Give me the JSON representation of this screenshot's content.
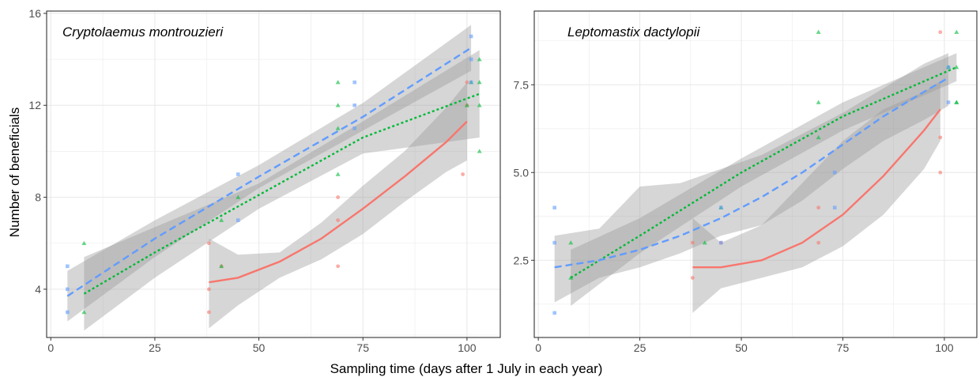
{
  "figure": {
    "xlabel": "Sampling time (days after 1 July in each year)",
    "ylabel": "Number of beneficials"
  },
  "colors": {
    "series_red": "#F8766D",
    "series_green": "#00BA38",
    "series_blue": "#619CFF",
    "ribbon": "#999999",
    "panel_border": "#333333",
    "grid": "#ebebeb"
  },
  "chart_data": [
    {
      "type": "scatter",
      "title": "Cryptolaemus montrouzieri",
      "xlim": [
        -1,
        108
      ],
      "ylim": [
        1.9,
        16.1
      ],
      "x_ticks": [
        0,
        25,
        50,
        75,
        100
      ],
      "x_tick_labels": [
        "0",
        "25",
        "50",
        "75",
        "100"
      ],
      "y_ticks": [
        4,
        8,
        12,
        16
      ],
      "y_tick_labels": [
        "4",
        "8",
        "12",
        "16"
      ],
      "grid": true,
      "series": [
        {
          "color": "#F8766D",
          "marker": "circle",
          "line": "solid",
          "points": [
            [
              38,
              6
            ],
            [
              38,
              4
            ],
            [
              38,
              3
            ],
            [
              41,
              5
            ],
            [
              69,
              8
            ],
            [
              69,
              7
            ],
            [
              69,
              5
            ],
            [
              99,
              9
            ],
            [
              100,
              13
            ],
            [
              100,
              12
            ]
          ],
          "fit": [
            [
              38,
              4.3
            ],
            [
              45,
              4.5
            ],
            [
              55,
              5.2
            ],
            [
              65,
              6.2
            ],
            [
              75,
              7.5
            ],
            [
              85,
              8.9
            ],
            [
              95,
              10.4
            ],
            [
              100,
              11.3
            ]
          ],
          "band_upper": [
            [
              38,
              6.2
            ],
            [
              45,
              5.5
            ],
            [
              55,
              5.6
            ],
            [
              65,
              6.9
            ],
            [
              75,
              8.5
            ],
            [
              85,
              10.0
            ],
            [
              95,
              11.9
            ],
            [
              100,
              13.0
            ]
          ],
          "band_lower": [
            [
              38,
              2.3
            ],
            [
              45,
              3.3
            ],
            [
              55,
              4.5
            ],
            [
              65,
              5.3
            ],
            [
              75,
              6.4
            ],
            [
              85,
              7.8
            ],
            [
              95,
              9.1
            ],
            [
              100,
              9.6
            ]
          ]
        },
        {
          "color": "#00BA38",
          "marker": "triangle",
          "line": "dotted",
          "points": [
            [
              8,
              6
            ],
            [
              8,
              3
            ],
            [
              41,
              7
            ],
            [
              41,
              5
            ],
            [
              45,
              8
            ],
            [
              69,
              13
            ],
            [
              69,
              12
            ],
            [
              69,
              11
            ],
            [
              69,
              9
            ],
            [
              100,
              12
            ],
            [
              101,
              13
            ],
            [
              103,
              14
            ],
            [
              103,
              13
            ],
            [
              103,
              12
            ],
            [
              103,
              10
            ]
          ],
          "fit": [
            [
              8,
              3.8
            ],
            [
              25,
              5.6
            ],
            [
              50,
              8.1
            ],
            [
              75,
              10.6
            ],
            [
              103,
              12.5
            ]
          ],
          "band_upper": [
            [
              8,
              5.4
            ],
            [
              25,
              6.7
            ],
            [
              50,
              8.6
            ],
            [
              75,
              11.3
            ],
            [
              103,
              14.4
            ]
          ],
          "band_lower": [
            [
              8,
              2.2
            ],
            [
              25,
              4.5
            ],
            [
              50,
              7.5
            ],
            [
              75,
              9.9
            ],
            [
              103,
              10.6
            ]
          ]
        },
        {
          "color": "#619CFF",
          "marker": "square",
          "line": "dashed",
          "points": [
            [
              4,
              5
            ],
            [
              4,
              4
            ],
            [
              4,
              3
            ],
            [
              45,
              9
            ],
            [
              45,
              7
            ],
            [
              73,
              13
            ],
            [
              73,
              12
            ],
            [
              73,
              11
            ],
            [
              101,
              15
            ],
            [
              101,
              14
            ],
            [
              101,
              13
            ]
          ],
          "fit": [
            [
              4,
              3.7
            ],
            [
              25,
              6.2
            ],
            [
              50,
              8.9
            ],
            [
              75,
              11.5
            ],
            [
              101,
              14.5
            ]
          ],
          "band_upper": [
            [
              4,
              4.8
            ],
            [
              25,
              7.0
            ],
            [
              50,
              9.4
            ],
            [
              75,
              12.1
            ],
            [
              101,
              15.5
            ]
          ],
          "band_lower": [
            [
              4,
              2.6
            ],
            [
              25,
              5.4
            ],
            [
              50,
              8.4
            ],
            [
              75,
              10.9
            ],
            [
              101,
              13.5
            ]
          ]
        }
      ]
    },
    {
      "type": "scatter",
      "title": "Leptomastix dactylopii",
      "xlim": [
        -1,
        108
      ],
      "ylim": [
        0.3,
        9.6
      ],
      "x_ticks": [
        0,
        25,
        50,
        75,
        100
      ],
      "x_tick_labels": [
        "0",
        "25",
        "50",
        "75",
        "100"
      ],
      "y_ticks": [
        2.5,
        5.0,
        7.5
      ],
      "y_tick_labels": [
        "2.5",
        "5.0",
        "7.5"
      ],
      "grid": true,
      "series": [
        {
          "color": "#F8766D",
          "marker": "circle",
          "line": "solid",
          "points": [
            [
              38,
              2
            ],
            [
              38,
              3
            ],
            [
              45,
              3
            ],
            [
              69,
              4
            ],
            [
              69,
              3
            ],
            [
              99,
              9
            ],
            [
              99,
              6
            ],
            [
              99,
              5
            ]
          ],
          "fit": [
            [
              38,
              2.3
            ],
            [
              45,
              2.3
            ],
            [
              55,
              2.5
            ],
            [
              65,
              3.0
            ],
            [
              75,
              3.8
            ],
            [
              85,
              4.9
            ],
            [
              95,
              6.2
            ],
            [
              99,
              6.8
            ]
          ],
          "band_upper": [
            [
              38,
              3.7
            ],
            [
              45,
              3.0
            ],
            [
              55,
              3.5
            ],
            [
              65,
              4.7
            ],
            [
              75,
              5.9
            ],
            [
              85,
              6.8
            ],
            [
              95,
              7.3
            ],
            [
              99,
              7.6
            ]
          ],
          "band_lower": [
            [
              38,
              1.0
            ],
            [
              45,
              1.7
            ],
            [
              55,
              2.0
            ],
            [
              65,
              2.3
            ],
            [
              75,
              2.9
            ],
            [
              85,
              3.8
            ],
            [
              95,
              5.1
            ],
            [
              99,
              5.9
            ]
          ]
        },
        {
          "color": "#00BA38",
          "marker": "triangle",
          "line": "dotted",
          "points": [
            [
              8,
              2
            ],
            [
              8,
              3
            ],
            [
              41,
              3
            ],
            [
              45,
              4
            ],
            [
              69,
              9
            ],
            [
              69,
              7
            ],
            [
              69,
              6
            ],
            [
              101,
              8
            ],
            [
              103,
              9
            ],
            [
              103,
              8
            ],
            [
              103,
              7
            ],
            [
              103,
              7
            ]
          ],
          "fit": [
            [
              8,
              2.0
            ],
            [
              25,
              3.2
            ],
            [
              50,
              5.0
            ],
            [
              75,
              6.6
            ],
            [
              103,
              8.0
            ]
          ],
          "band_upper": [
            [
              8,
              2.8
            ],
            [
              25,
              3.7
            ],
            [
              50,
              5.4
            ],
            [
              75,
              7.0
            ],
            [
              103,
              8.4
            ]
          ],
          "band_lower": [
            [
              8,
              1.2
            ],
            [
              25,
              2.7
            ],
            [
              50,
              4.6
            ],
            [
              75,
              6.2
            ],
            [
              103,
              7.6
            ]
          ]
        },
        {
          "color": "#619CFF",
          "marker": "square",
          "line": "dashed",
          "points": [
            [
              4,
              4
            ],
            [
              4,
              3
            ],
            [
              4,
              1
            ],
            [
              45,
              4
            ],
            [
              45,
              3
            ],
            [
              73,
              5
            ],
            [
              73,
              4
            ],
            [
              101,
              7
            ],
            [
              101,
              8
            ]
          ],
          "fit": [
            [
              4,
              2.3
            ],
            [
              15,
              2.5
            ],
            [
              25,
              2.8
            ],
            [
              35,
              3.2
            ],
            [
              45,
              3.7
            ],
            [
              55,
              4.3
            ],
            [
              65,
              5.0
            ],
            [
              75,
              5.8
            ],
            [
              85,
              6.6
            ],
            [
              95,
              7.3
            ],
            [
              101,
              7.7
            ]
          ],
          "band_upper": [
            [
              4,
              3.2
            ],
            [
              15,
              3.4
            ],
            [
              25,
              4.6
            ],
            [
              35,
              4.7
            ],
            [
              45,
              5.1
            ],
            [
              55,
              5.5
            ],
            [
              65,
              6.1
            ],
            [
              75,
              6.7
            ],
            [
              85,
              7.4
            ],
            [
              95,
              8.1
            ],
            [
              101,
              8.4
            ]
          ],
          "band_lower": [
            [
              4,
              1.3
            ],
            [
              15,
              2.0
            ],
            [
              25,
              2.3
            ],
            [
              35,
              2.7
            ],
            [
              45,
              3.2
            ],
            [
              55,
              3.5
            ],
            [
              65,
              4.2
            ],
            [
              75,
              5.1
            ],
            [
              85,
              5.9
            ],
            [
              95,
              6.5
            ],
            [
              101,
              6.9
            ]
          ]
        }
      ]
    }
  ]
}
